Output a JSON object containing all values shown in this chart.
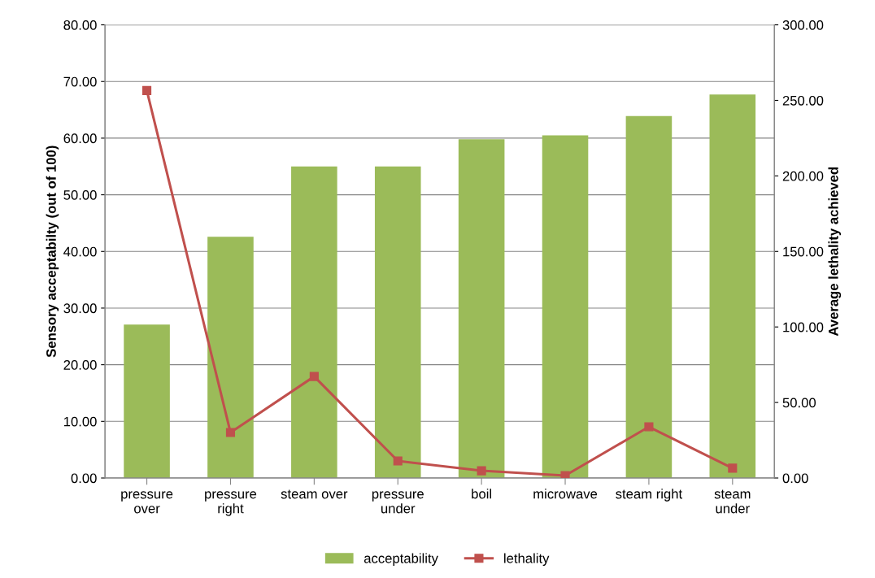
{
  "chart_data": {
    "type": "bar",
    "ylabel": "Sensory acceptabilty (out of 100)",
    "y2label": "Average lethality achieved",
    "categories": [
      "pressure\nover",
      "pressure\nright",
      "steam over",
      "pressure\nunder",
      "boil",
      "microwave",
      "steam right",
      "steam\nunder"
    ],
    "series": [
      {
        "name": "acceptability",
        "color": "#9bbb59",
        "values": [
          27.1,
          42.6,
          55.0,
          55.0,
          59.8,
          60.5,
          63.9,
          67.7
        ]
      },
      {
        "name": "lethality",
        "type": "line",
        "axis": "y2",
        "color": "#c0504d",
        "marker": "square",
        "values": [
          256.5,
          30.1,
          67.2,
          11.3,
          4.8,
          1.6,
          33.9,
          6.5
        ]
      }
    ],
    "ylim": [
      0,
      80
    ],
    "yticks": [
      {
        "value": 0,
        "label": "0.00"
      },
      {
        "value": 10,
        "label": "10.00"
      },
      {
        "value": 20,
        "label": "20.00"
      },
      {
        "value": 30,
        "label": "30.00"
      },
      {
        "value": 40,
        "label": "40.00"
      },
      {
        "value": 50,
        "label": "50.00"
      },
      {
        "value": 60,
        "label": "60.00"
      },
      {
        "value": 70,
        "label": "70.00"
      },
      {
        "value": 80,
        "label": "80.00"
      }
    ],
    "y2lim": [
      0,
      300
    ],
    "y2ticks": [
      {
        "value": 0,
        "label": "0.00"
      },
      {
        "value": 50,
        "label": "50.00"
      },
      {
        "value": 100,
        "label": "100.00"
      },
      {
        "value": 150,
        "label": "150.00"
      },
      {
        "value": 200,
        "label": "200.00"
      },
      {
        "value": 250,
        "label": "250.00"
      },
      {
        "value": 300,
        "label": "300.00"
      }
    ],
    "grid": "y",
    "legend": "bottom"
  }
}
